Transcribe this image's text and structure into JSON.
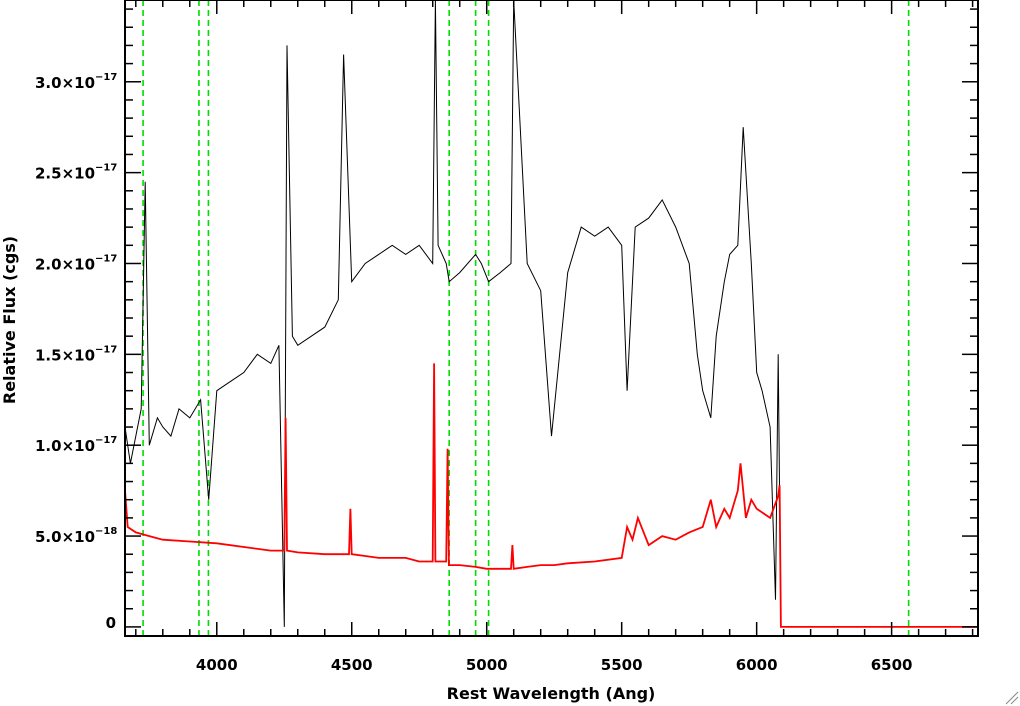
{
  "chart_data": {
    "type": "line",
    "title": "",
    "xlabel": "Rest Wavelength (Ang)",
    "ylabel": "Relative Flux (cgs)",
    "xlim": [
      3660,
      6820
    ],
    "ylim": [
      -5e-19,
      3.45e-17
    ],
    "grid": false,
    "legend": "none",
    "x_ticks": [
      {
        "value": 4000,
        "label": "4000"
      },
      {
        "value": 4500,
        "label": "4500"
      },
      {
        "value": 5000,
        "label": "5000"
      },
      {
        "value": 5500,
        "label": "5500"
      },
      {
        "value": 6000,
        "label": "6000"
      },
      {
        "value": 6500,
        "label": "6500"
      }
    ],
    "y_ticks": [
      {
        "value": 0,
        "label": "0",
        "exp": ""
      },
      {
        "value": 5e-18,
        "label": "5.0×10",
        "exp": "−18"
      },
      {
        "value": 1e-17,
        "label": "1.0×10",
        "exp": "−17"
      },
      {
        "value": 1.5e-17,
        "label": "1.5×10",
        "exp": "−17"
      },
      {
        "value": 2e-17,
        "label": "2.0×10",
        "exp": "−17"
      },
      {
        "value": 2.5e-17,
        "label": "2.5×10",
        "exp": "−17"
      },
      {
        "value": 3e-17,
        "label": "3.0×10",
        "exp": "−17"
      }
    ],
    "vertical_lines": [
      3727,
      3934,
      3969,
      4861,
      4959,
      5007,
      6563
    ],
    "series": [
      {
        "color": "#000000",
        "x": [
          3660,
          3680,
          3700,
          3720,
          3735,
          3750,
          3780,
          3800,
          3830,
          3860,
          3900,
          3940,
          3970,
          4000,
          4050,
          4100,
          4150,
          4200,
          4230,
          4250,
          4260,
          4280,
          4300,
          4350,
          4400,
          4450,
          4470,
          4500,
          4550,
          4600,
          4650,
          4700,
          4750,
          4800,
          4810,
          4820,
          4850,
          4861,
          4900,
          4959,
          4980,
          5007,
          5050,
          5090,
          5100,
          5150,
          5200,
          5240,
          5300,
          5350,
          5400,
          5450,
          5500,
          5520,
          5550,
          5600,
          5650,
          5700,
          5750,
          5780,
          5800,
          5830,
          5850,
          5880,
          5900,
          5930,
          5950,
          5980,
          6000,
          6020,
          6050,
          6070,
          6080,
          6090
        ],
        "y": [
          1.1e-17,
          9e-18,
          1.05e-17,
          1.2e-17,
          2.45e-17,
          1e-17,
          1.15e-17,
          1.1e-17,
          1.05e-17,
          1.2e-17,
          1.15e-17,
          1.25e-17,
          7e-18,
          1.3e-17,
          1.35e-17,
          1.4e-17,
          1.5e-17,
          1.45e-17,
          1.55e-17,
          0.0,
          3.2e-17,
          1.6e-17,
          1.55e-17,
          1.6e-17,
          1.65e-17,
          1.8e-17,
          3.15e-17,
          1.9e-17,
          2e-17,
          2.05e-17,
          2.1e-17,
          2.05e-17,
          2.1e-17,
          2e-17,
          3.45e-17,
          2.1e-17,
          2e-17,
          1.9e-17,
          1.95e-17,
          2.05e-17,
          2e-17,
          1.9e-17,
          1.95e-17,
          2e-17,
          3.45e-17,
          2e-17,
          1.85e-17,
          1.05e-17,
          1.95e-17,
          2.2e-17,
          2.15e-17,
          2.2e-17,
          2.1e-17,
          1.3e-17,
          2.2e-17,
          2.25e-17,
          2.35e-17,
          2.2e-17,
          2e-17,
          1.5e-17,
          1.3e-17,
          1.15e-17,
          1.6e-17,
          1.9e-17,
          2.05e-17,
          2.1e-17,
          2.75e-17,
          2e-17,
          1.4e-17,
          1.3e-17,
          1.1e-17,
          1.5e-18,
          1.5e-17,
          0.0
        ]
      },
      {
        "color": "#ff0000",
        "x": [
          3660,
          3670,
          3700,
          3750,
          3800,
          3900,
          4000,
          4100,
          4200,
          4250,
          4255,
          4260,
          4300,
          4400,
          4450,
          4490,
          4495,
          4500,
          4550,
          4600,
          4700,
          4750,
          4800,
          4805,
          4810,
          4850,
          4855,
          4860,
          4900,
          4959,
          5000,
          5050,
          5090,
          5095,
          5100,
          5150,
          5200,
          5250,
          5300,
          5400,
          5500,
          5520,
          5540,
          5560,
          5600,
          5650,
          5700,
          5750,
          5800,
          5830,
          5850,
          5880,
          5900,
          5930,
          5940,
          5960,
          5980,
          6000,
          6050,
          6080,
          6085,
          6090,
          6100,
          6200,
          6400,
          6600,
          6820
        ],
        "y": [
          7.5e-18,
          5.5e-18,
          5.2e-18,
          5e-18,
          4.8e-18,
          4.7e-18,
          4.6e-18,
          4.4e-18,
          4.2e-18,
          4.2e-18,
          1.15e-17,
          4.2e-18,
          4.1e-18,
          4e-18,
          4e-18,
          4e-18,
          6.5e-18,
          4e-18,
          3.9e-18,
          3.8e-18,
          3.8e-18,
          3.6e-18,
          3.6e-18,
          1.45e-17,
          3.6e-18,
          3.6e-18,
          9.8e-18,
          3.4e-18,
          3.4e-18,
          3.3e-18,
          3.2e-18,
          3.2e-18,
          3.2e-18,
          4.5e-18,
          3.2e-18,
          3.3e-18,
          3.4e-18,
          3.4e-18,
          3.5e-18,
          3.6e-18,
          3.8e-18,
          5.5e-18,
          4.8e-18,
          6e-18,
          4.5e-18,
          5e-18,
          4.8e-18,
          5.2e-18,
          5.5e-18,
          7e-18,
          5.5e-18,
          6.5e-18,
          6e-18,
          7.5e-18,
          9e-18,
          6e-18,
          7e-18,
          6.5e-18,
          6e-18,
          7.2e-18,
          7.8e-18,
          0.0,
          0.0,
          0.0,
          0.0,
          0.0,
          0.0
        ]
      }
    ]
  },
  "colors": {
    "marker_lines": "#00dd00",
    "axes": "#000000"
  }
}
